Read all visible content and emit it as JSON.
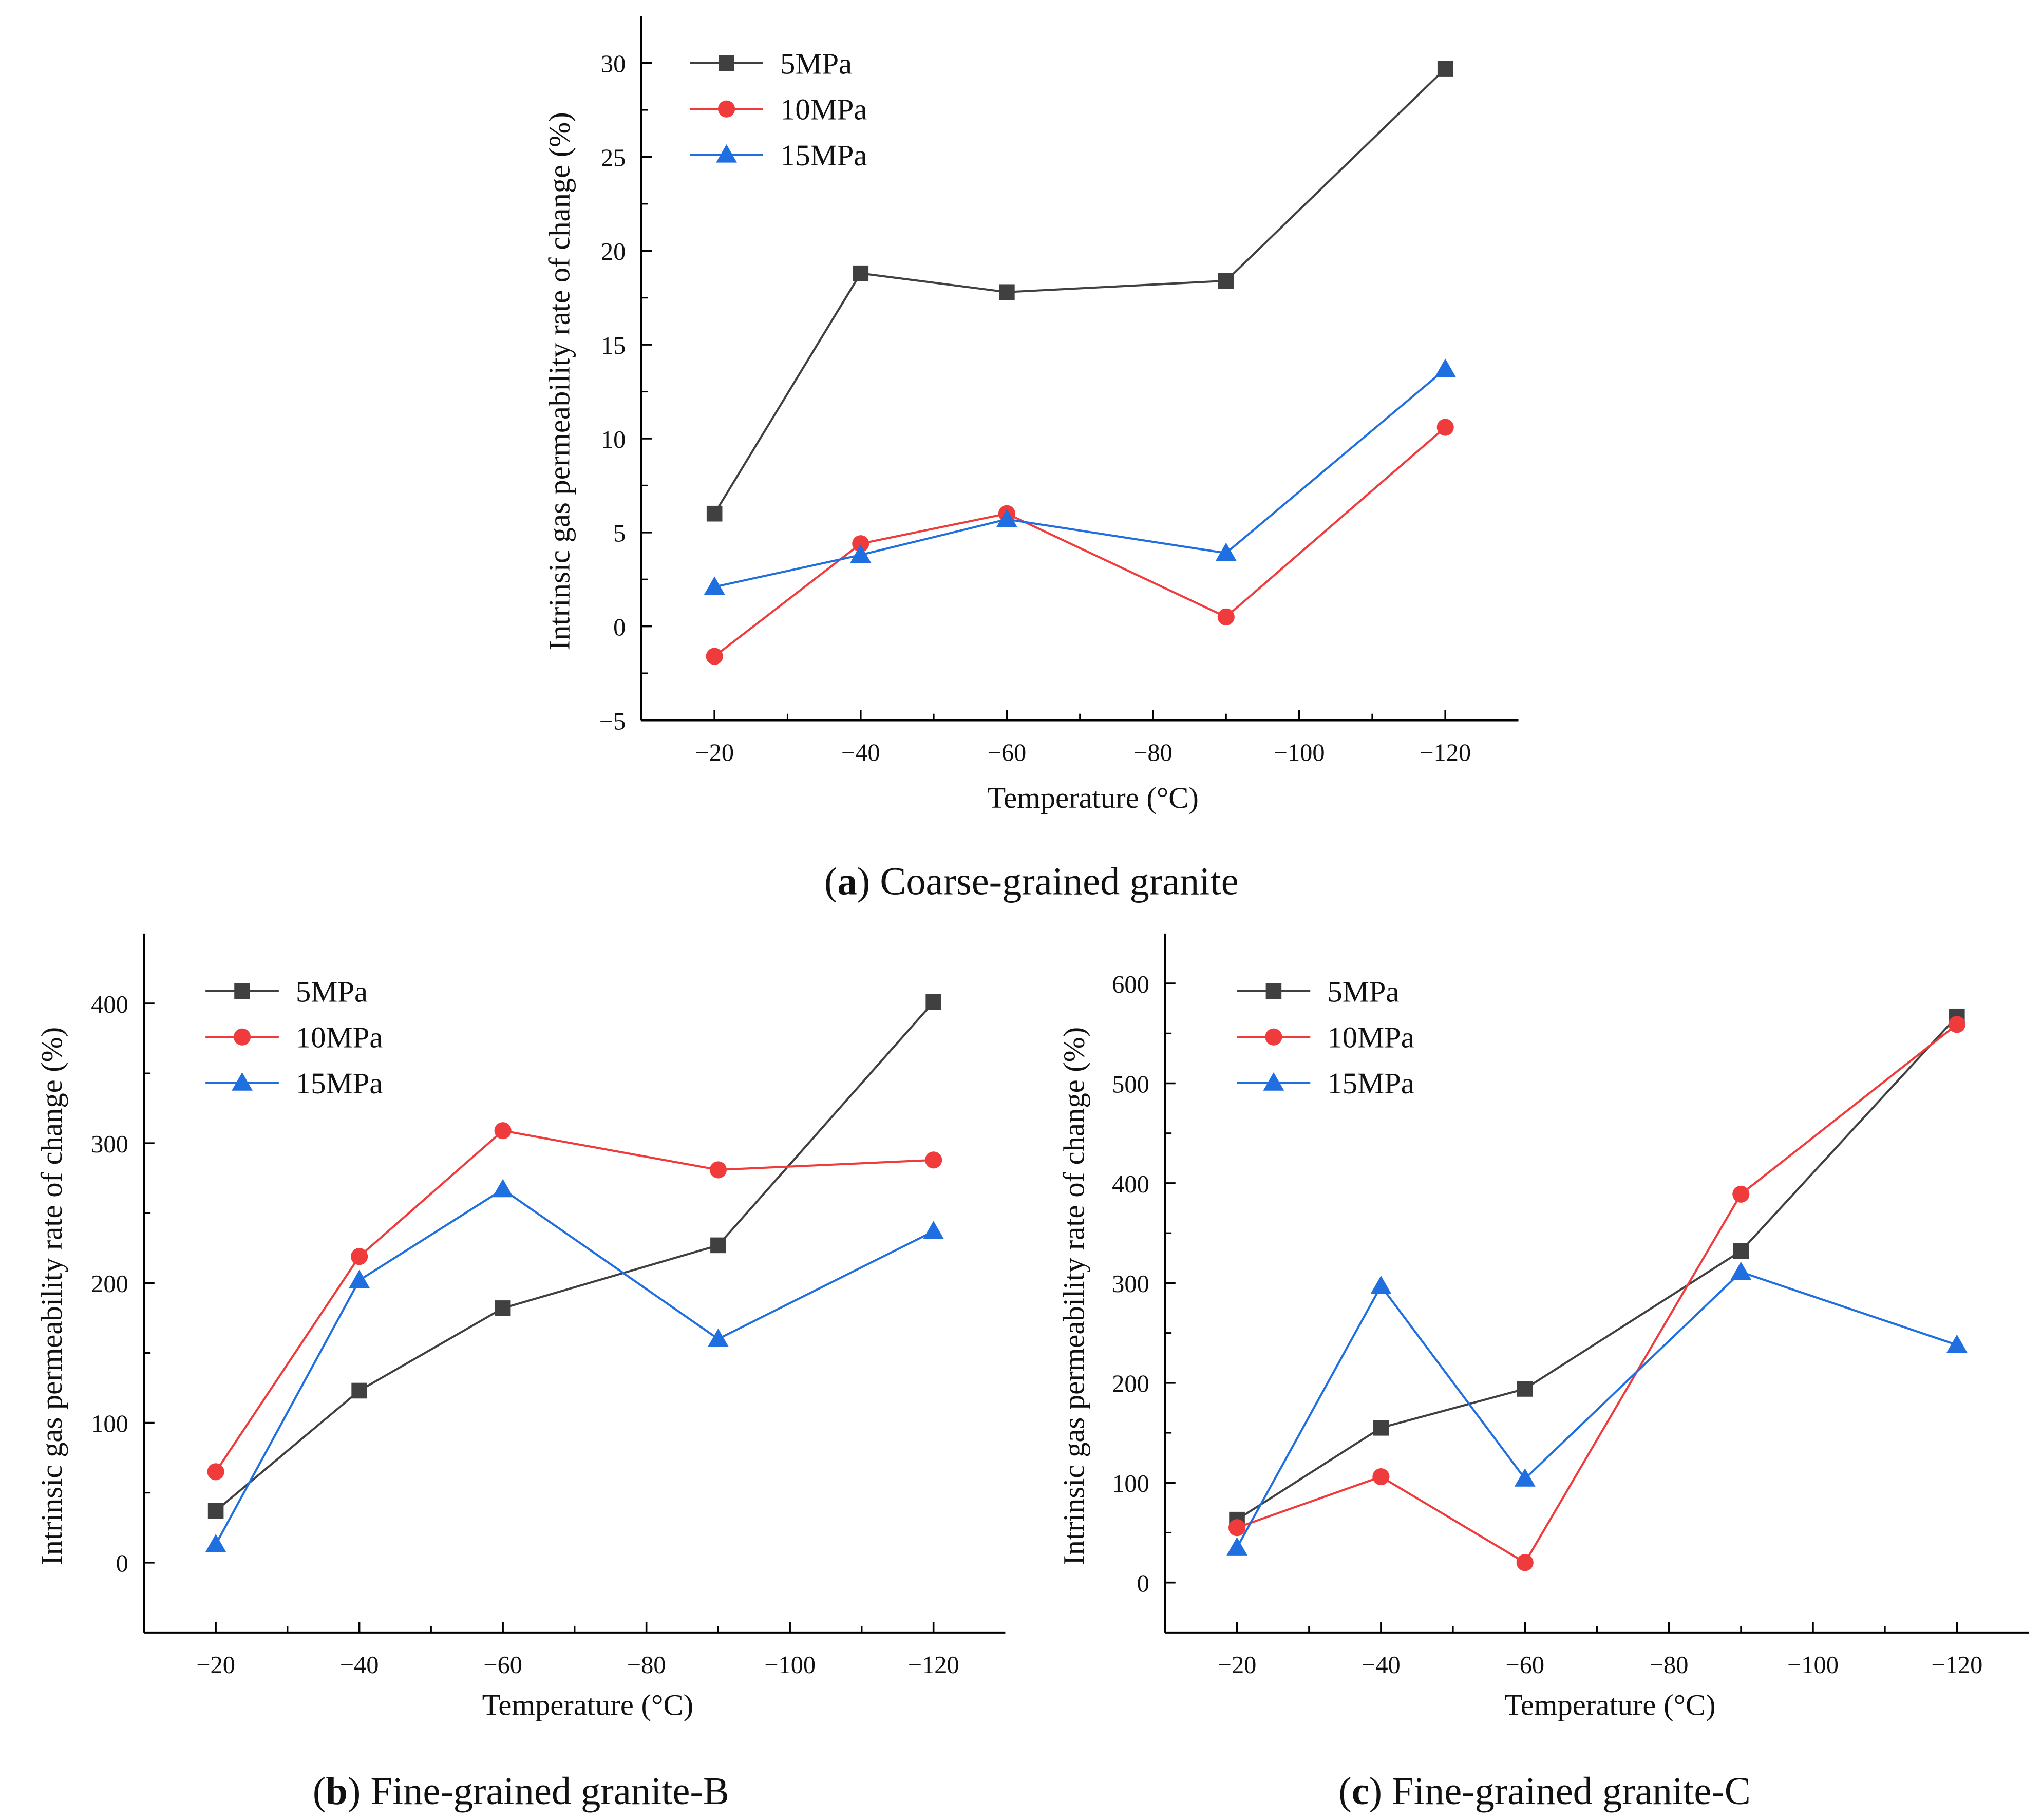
{
  "chart_data": [
    {
      "type": "line",
      "caption_letter": "a",
      "caption_text": "Coarse-grained granite",
      "xlabel": "Temperature (°C)",
      "ylabel": "Intrinsic gas permeability rate of change (%)",
      "x": [
        -20,
        -40,
        -60,
        -90,
        -120
      ],
      "xlim": [
        -10,
        -130
      ],
      "xticks": [
        -20,
        -40,
        -60,
        -80,
        -100,
        -120
      ],
      "ylim": [
        -5,
        32.5
      ],
      "yticks": [
        -5,
        0,
        5,
        10,
        15,
        20,
        25,
        30
      ],
      "legend_position": "top-left",
      "grid": false,
      "series": [
        {
          "name": "5MPa",
          "marker": "square",
          "color": "#404040",
          "values": [
            6.0,
            18.8,
            17.8,
            18.4,
            29.7
          ]
        },
        {
          "name": "10MPa",
          "marker": "circle",
          "color": "#ef3b3b",
          "values": [
            -1.6,
            4.4,
            6.0,
            0.5,
            10.6
          ]
        },
        {
          "name": "15MPa",
          "marker": "triangle",
          "color": "#1f6fe0",
          "values": [
            2.1,
            3.8,
            5.7,
            3.9,
            13.7
          ]
        }
      ]
    },
    {
      "type": "line",
      "caption_letter": "b",
      "caption_text": "Fine-grained granite-B",
      "xlabel": "Temperature (°C)",
      "ylabel": "Intrinsic gas permeability rate of change (%)",
      "x": [
        -20,
        -40,
        -60,
        -90,
        -120
      ],
      "xlim": [
        -10,
        -130
      ],
      "xticks": [
        -20,
        -40,
        -60,
        -80,
        -100,
        -120
      ],
      "ylim": [
        -50,
        450
      ],
      "yticks": [
        0,
        100,
        200,
        300,
        400
      ],
      "legend_position": "top-left",
      "grid": false,
      "series": [
        {
          "name": "5MPa",
          "marker": "square",
          "color": "#404040",
          "values": [
            37,
            123,
            182,
            227,
            401
          ]
        },
        {
          "name": "10MPa",
          "marker": "circle",
          "color": "#ef3b3b",
          "values": [
            65,
            219,
            309,
            281,
            288
          ]
        },
        {
          "name": "15MPa",
          "marker": "triangle",
          "color": "#1f6fe0",
          "values": [
            13,
            202,
            267,
            160,
            237
          ]
        }
      ]
    },
    {
      "type": "line",
      "caption_letter": "c",
      "caption_text": "Fine-grained granite-C",
      "xlabel": "Temperature (°C)",
      "ylabel": "Intrinsic gas permeability rate of change (%)",
      "x": [
        -20,
        -40,
        -60,
        -90,
        -120
      ],
      "xlim": [
        -10,
        -130
      ],
      "xticks": [
        -20,
        -40,
        -60,
        -80,
        -100,
        -120
      ],
      "ylim": [
        -50,
        650
      ],
      "yticks": [
        0,
        100,
        200,
        300,
        400,
        500,
        600
      ],
      "legend_position": "top-left",
      "grid": false,
      "series": [
        {
          "name": "5MPa",
          "marker": "square",
          "color": "#404040",
          "values": [
            63,
            155,
            194,
            332,
            567
          ]
        },
        {
          "name": "10MPa",
          "marker": "circle",
          "color": "#ef3b3b",
          "values": [
            55,
            106,
            20,
            389,
            559
          ]
        },
        {
          "name": "15MPa",
          "marker": "triangle",
          "color": "#1f6fe0",
          "values": [
            35,
            297,
            104,
            311,
            238
          ]
        }
      ]
    }
  ]
}
